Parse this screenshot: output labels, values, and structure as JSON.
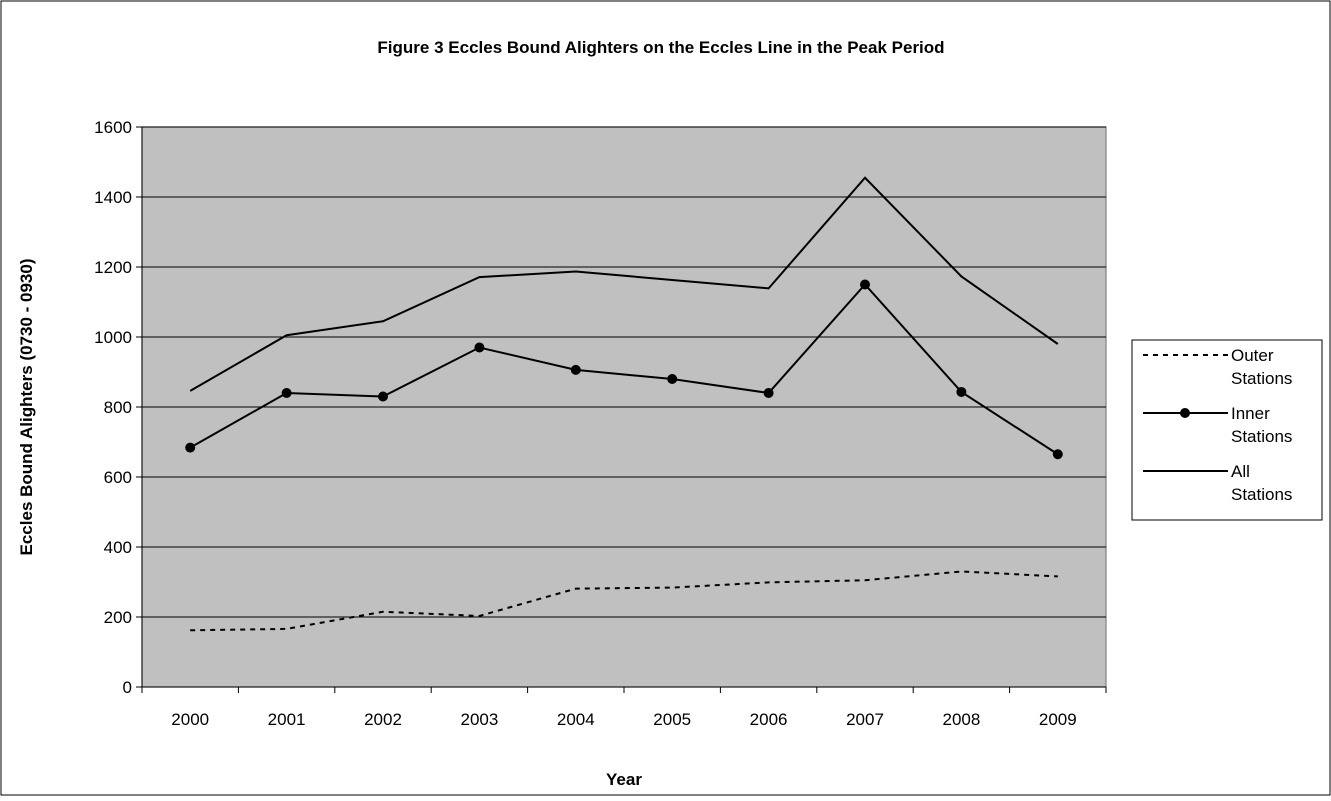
{
  "chart_data": {
    "type": "line",
    "title": "Figure 3 Eccles Bound Alighters on the Eccles Line in the Peak Period",
    "xlabel": "Year",
    "ylabel": "Eccles Bound Alighters (0730 - 0930)",
    "categories": [
      "2000",
      "2001",
      "2002",
      "2003",
      "2004",
      "2005",
      "2006",
      "2007",
      "2008",
      "2009"
    ],
    "ylim": [
      0,
      1600
    ],
    "yticks": [
      0,
      200,
      400,
      600,
      800,
      1000,
      1200,
      1400,
      1600
    ],
    "grid": true,
    "legend_position": "right",
    "series": [
      {
        "name": "Outer Stations",
        "style": "dotted",
        "markers": false,
        "values": [
          162,
          166,
          215,
          203,
          281,
          284,
          299,
          305,
          330,
          316
        ]
      },
      {
        "name": "Inner Stations",
        "style": "solid",
        "markers": true,
        "values": [
          684,
          840,
          830,
          970,
          906,
          880,
          840,
          1150,
          843,
          665
        ]
      },
      {
        "name": "All Stations",
        "style": "solid",
        "markers": false,
        "values": [
          846,
          1005,
          1045,
          1171,
          1187,
          1163,
          1139,
          1455,
          1173,
          980
        ]
      }
    ],
    "colors": {
      "plot_background": "#c0c0c0",
      "line": "#000000",
      "grid": "#000000"
    }
  }
}
